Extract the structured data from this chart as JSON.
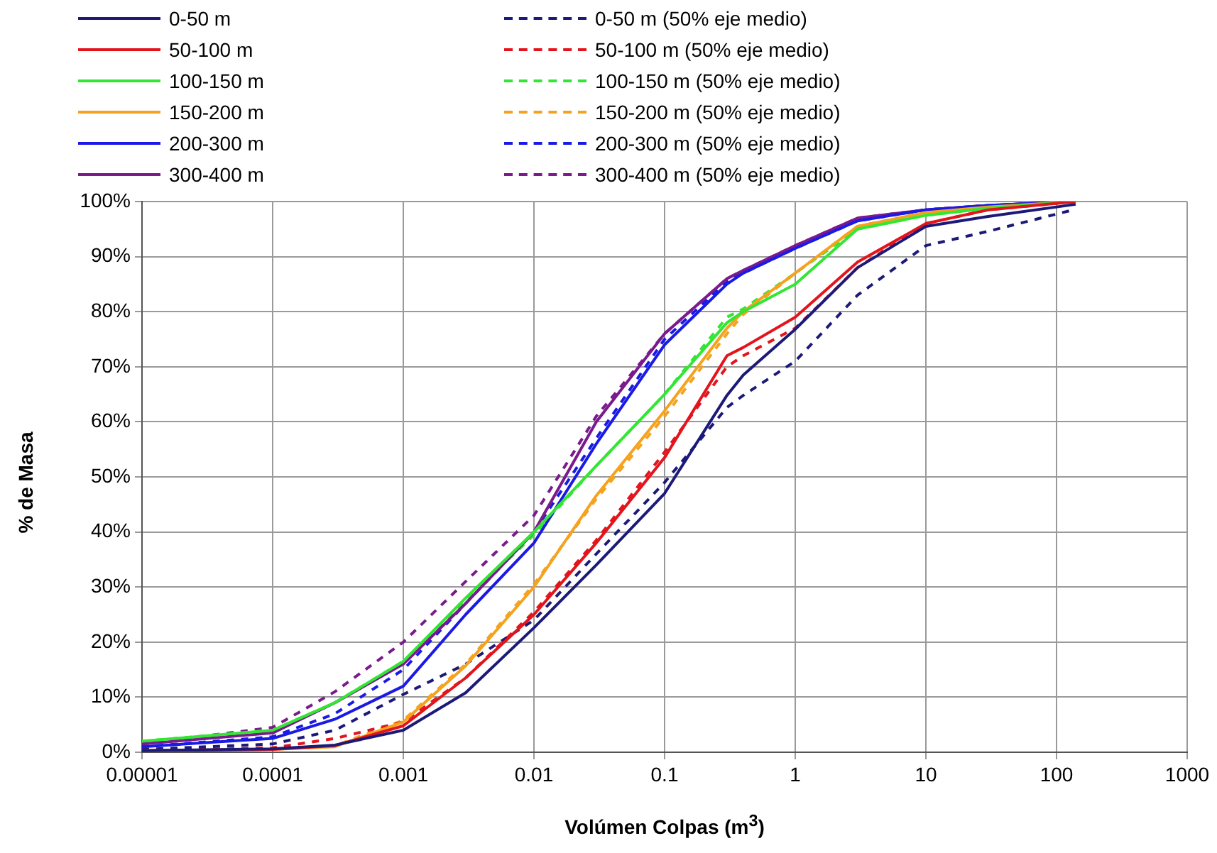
{
  "chart_data": {
    "type": "line",
    "xlabel": "Volúmen Colpas (m$^{3}$)",
    "ylabel": "% de Masa",
    "log": "x",
    "grid": true,
    "legend": "top",
    "marker": "none",
    "x": [
      1e-05,
      0.0001,
      0.0003,
      0.001,
      0.003,
      0.01,
      0.03,
      0.1,
      0.3,
      0.4,
      1,
      3,
      10,
      30,
      140
    ],
    "xlim": [
      1e-05,
      1000
    ],
    "xticks": [
      {
        "value": 1e-05,
        "label": "0.00001"
      },
      0.0001,
      0.001,
      0.01,
      0.1,
      1,
      10,
      100,
      1000
    ],
    "ylim": [
      0,
      100
    ],
    "yticks": [
      {
        "value": 0,
        "label": "0%"
      },
      {
        "value": 10,
        "label": "10%"
      },
      {
        "value": 20,
        "label": "20%"
      },
      {
        "value": 30,
        "label": "30%"
      },
      {
        "value": 40,
        "label": "40%"
      },
      {
        "value": 50,
        "label": "50%"
      },
      {
        "value": 60,
        "label": "60%"
      },
      {
        "value": 70,
        "label": "70%"
      },
      {
        "value": 80,
        "label": "80%"
      },
      {
        "value": 90,
        "label": "90%"
      },
      {
        "value": 100,
        "label": "100%"
      }
    ],
    "series": [
      {
        "name": "0-50 m",
        "color": "#1c1a78",
        "line_style": "solid",
        "values": [
          0.3,
          0.6,
          1.3,
          4,
          10.8,
          22.6,
          34,
          47,
          64.8,
          68.5,
          76.8,
          88,
          95.5,
          97.3,
          99.5
        ]
      },
      {
        "name": "50-100 m",
        "color": "#e3141c",
        "line_style": "solid",
        "values": [
          0.3,
          0.5,
          1.2,
          4.8,
          13.5,
          25,
          38,
          53.5,
          72,
          73.5,
          79,
          89,
          96,
          98.5,
          100
        ]
      },
      {
        "name": "100-150 m",
        "color": "#33e633",
        "line_style": "solid",
        "values": [
          2,
          4,
          9,
          16.5,
          28,
          40,
          52,
          65,
          78,
          80,
          85,
          95,
          97.5,
          98.8,
          100
        ]
      },
      {
        "name": "150-200 m",
        "color": "#f5a21e",
        "line_style": "solid",
        "values": [
          0.3,
          0.5,
          1,
          5.5,
          15.7,
          30,
          46.6,
          62,
          77,
          80,
          87,
          95.5,
          98,
          99,
          100
        ]
      },
      {
        "name": "200-300 m",
        "color": "#1a1ae6",
        "line_style": "solid",
        "values": [
          1,
          2.5,
          6,
          12,
          25,
          38,
          56,
          74,
          85,
          87,
          91.5,
          96.5,
          98.5,
          99.3,
          100
        ]
      },
      {
        "name": "300-400 m",
        "color": "#7a1a8c",
        "line_style": "solid",
        "values": [
          1.5,
          3.5,
          9,
          16,
          27,
          40,
          60,
          76,
          86,
          87.5,
          92,
          97,
          98.5,
          99.3,
          100
        ]
      },
      {
        "name": "0-50 m (50% eje medio)",
        "color": "#1c1a78",
        "line_style": "dashed",
        "values": [
          0.5,
          1.5,
          4,
          10.5,
          16,
          24,
          36,
          49,
          62.6,
          64.8,
          71,
          83,
          92,
          94.6,
          98.6
        ]
      },
      {
        "name": "50-100 m (50% eje medio)",
        "color": "#e3141c",
        "line_style": "dashed",
        "values": [
          0.3,
          0.8,
          2.5,
          5.5,
          13.5,
          25.5,
          38.5,
          54.5,
          70,
          72,
          77,
          88,
          96,
          98.5,
          100
        ]
      },
      {
        "name": "100-150 m (50% eje medio)",
        "color": "#33e633",
        "line_style": "dashed",
        "values": [
          2,
          4,
          9,
          16.5,
          27.5,
          39.5,
          52,
          65,
          79,
          80.5,
          87,
          95,
          97.5,
          98.8,
          100
        ]
      },
      {
        "name": "150-200 m (50% eje medio)",
        "color": "#f5a21e",
        "line_style": "dashed",
        "values": [
          0.3,
          0.6,
          1.2,
          5.8,
          16,
          30.5,
          46,
          61,
          76,
          79.5,
          87,
          95.5,
          98,
          99,
          100
        ]
      },
      {
        "name": "200-300 m (50% eje medio)",
        "color": "#1a1ae6",
        "line_style": "dashed",
        "values": [
          1,
          2.8,
          7,
          15,
          27,
          40,
          57,
          75,
          85.5,
          87,
          91.5,
          96.5,
          98.5,
          99.3,
          100
        ]
      },
      {
        "name": "300-400 m (50% eje medio)",
        "color": "#7a1a8c",
        "line_style": "dashed",
        "values": [
          1.5,
          4.5,
          11,
          20,
          31,
          43,
          61,
          76,
          86,
          87.5,
          92,
          97,
          98.5,
          99.3,
          100
        ]
      }
    ]
  }
}
